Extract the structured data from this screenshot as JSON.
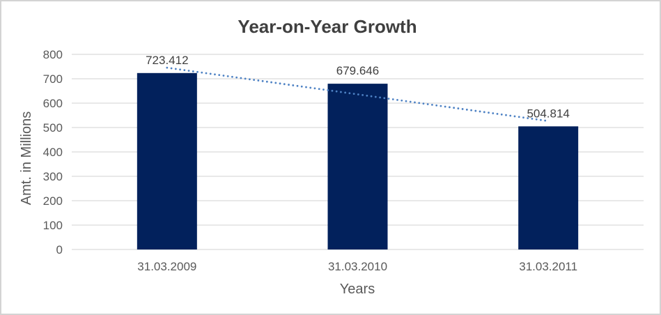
{
  "chart_data": {
    "type": "bar",
    "title": "Year-on-Year Growth",
    "xlabel": "Years",
    "ylabel": "Amt. in Millions",
    "categories": [
      "31.03.2009",
      "31.03.2010",
      "31.03.2011"
    ],
    "values": [
      723.412,
      679.646,
      504.814
    ],
    "data_labels": [
      "723.412",
      "679.646",
      "504.814"
    ],
    "ylim": [
      0,
      800
    ],
    "ytick_step": 100,
    "grid": true,
    "legend": "none",
    "trendline": {
      "type": "linear",
      "style": "dotted",
      "start_value": 745.3,
      "end_value": 526.7
    },
    "colors": {
      "bar": "#02215c",
      "trendline": "#4e82c4",
      "gridline": "#d9d9d9",
      "title_text": "#3f3f3f",
      "axis_text": "#595959",
      "data_label_text": "#404040",
      "border": "#d3d3d3",
      "background": "#ffffff"
    }
  }
}
